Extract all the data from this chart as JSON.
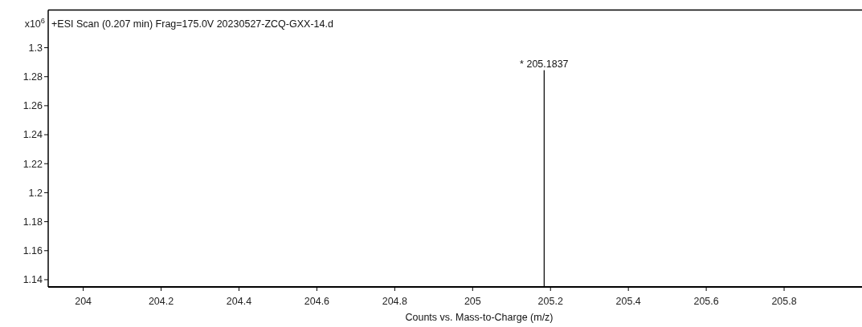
{
  "chart_data": {
    "type": "bar",
    "title": "+ESI Scan (0.207 min) Frag=175.0V 20230527-ZCQ-GXX-14.d",
    "xlabel": "Counts vs. Mass-to-Charge (m/z)",
    "ylabel": "x10$^{6}$",
    "x": [
      205.1837
    ],
    "values": [
      1.2845
    ],
    "color": "#000000",
    "xlim": [
      203.91,
      206.0
    ],
    "xticks": [
      {
        "value": 204,
        "label": "204"
      },
      {
        "value": 204.2,
        "label": "204.2"
      },
      {
        "value": 204.4,
        "label": "204.4"
      },
      {
        "value": 204.6,
        "label": "204.6"
      },
      {
        "value": 204.8,
        "label": "204.8"
      },
      {
        "value": 205,
        "label": "205"
      },
      {
        "value": 205.2,
        "label": "205.2"
      },
      {
        "value": 205.4,
        "label": "205.4"
      },
      {
        "value": 205.6,
        "label": "205.6"
      },
      {
        "value": 205.8,
        "label": "205.8"
      }
    ],
    "ylim": [
      1.135,
      1.326
    ],
    "yticks": [
      1.14,
      1.16,
      1.18,
      1.2,
      1.22,
      1.24,
      1.26,
      1.28,
      1.3
    ],
    "annotations": [
      {
        "text": "* 205.1837",
        "x": 205.1837,
        "y": 1.2845
      }
    ],
    "grid": false
  }
}
